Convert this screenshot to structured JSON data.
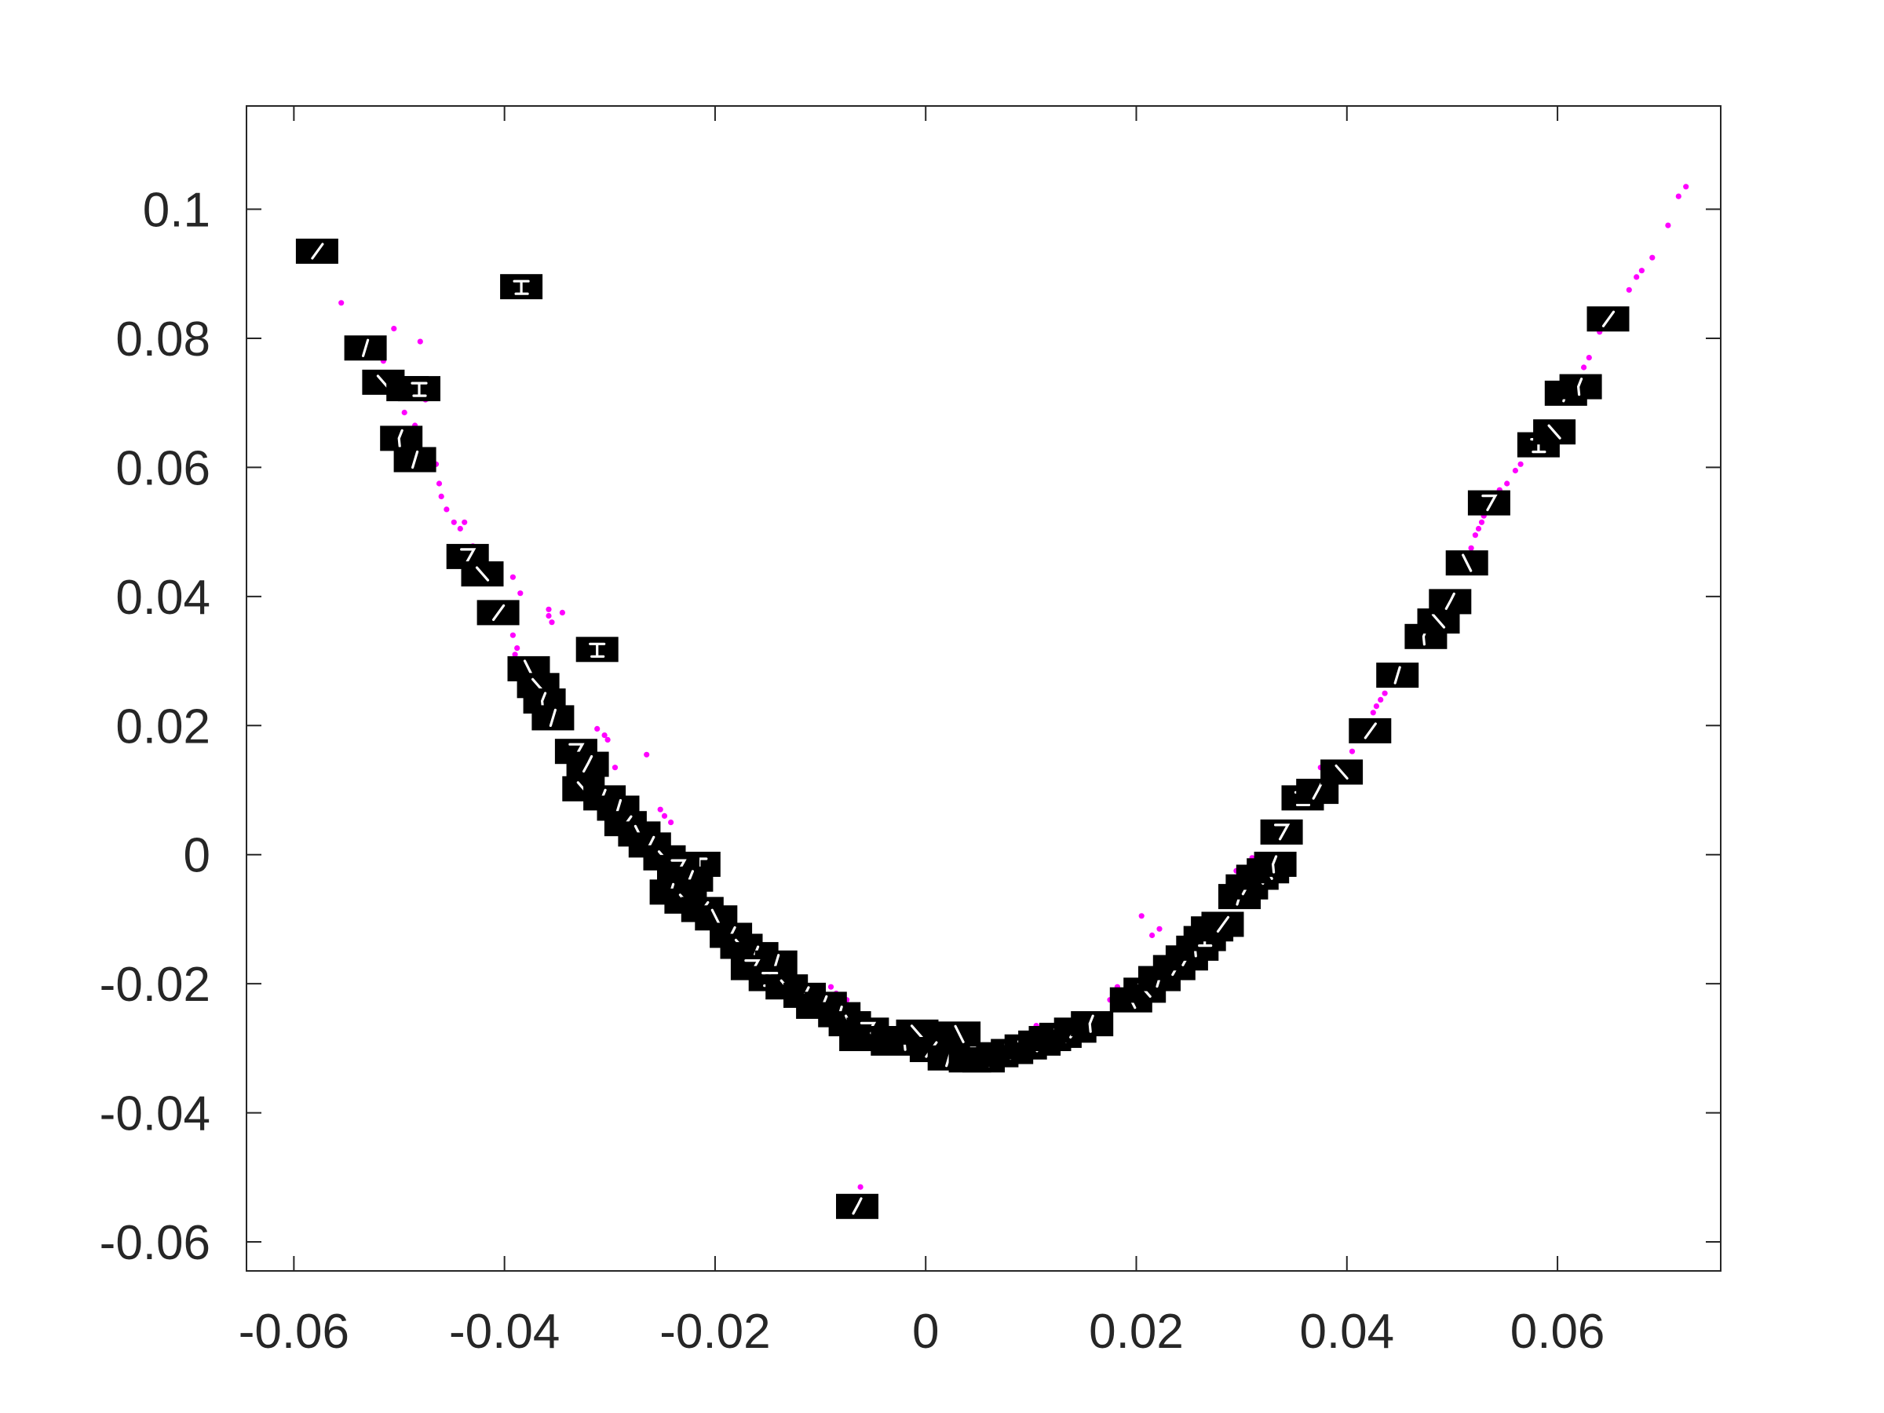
{
  "chart_data": {
    "type": "scatter",
    "title": "",
    "xlabel": "",
    "ylabel": "",
    "xlim": [
      -0.0645,
      0.0755
    ],
    "ylim": [
      -0.0645,
      0.116
    ],
    "grid": false,
    "box": true,
    "colors": {
      "dots": "#ff00ff",
      "thumbnail_bg": "#000000",
      "thumbnail_stroke": "#ffffff",
      "axes": "#262626"
    },
    "x_ticks": [
      {
        "value": -0.06,
        "label": "-0.06"
      },
      {
        "value": -0.04,
        "label": "-0.04"
      },
      {
        "value": -0.02,
        "label": "-0.02"
      },
      {
        "value": 0,
        "label": "0"
      },
      {
        "value": 0.02,
        "label": "0.02"
      },
      {
        "value": 0.04,
        "label": "0.04"
      },
      {
        "value": 0.06,
        "label": "0.06"
      }
    ],
    "y_ticks": [
      {
        "value": 0.1,
        "label": "0.1"
      },
      {
        "value": 0.08,
        "label": "0.08"
      },
      {
        "value": 0.06,
        "label": "0.06"
      },
      {
        "value": 0.04,
        "label": "0.04"
      },
      {
        "value": 0.02,
        "label": "0.02"
      },
      {
        "value": 0,
        "label": "0"
      },
      {
        "value": -0.02,
        "label": "-0.02"
      },
      {
        "value": -0.04,
        "label": "-0.04"
      },
      {
        "value": -0.06,
        "label": "-0.06"
      }
    ],
    "dots": [
      [
        -0.0555,
        0.0855
      ],
      [
        -0.0505,
        0.0815
      ],
      [
        -0.048,
        0.0795
      ],
      [
        -0.0515,
        0.0765
      ],
      [
        -0.0475,
        0.0705
      ],
      [
        -0.0495,
        0.0685
      ],
      [
        -0.0485,
        0.0665
      ],
      [
        -0.0465,
        0.0605
      ],
      [
        -0.0462,
        0.0575
      ],
      [
        -0.046,
        0.0555
      ],
      [
        -0.0455,
        0.0535
      ],
      [
        -0.0448,
        0.0515
      ],
      [
        -0.0442,
        0.0505
      ],
      [
        -0.0438,
        0.0515
      ],
      [
        -0.043,
        0.0478
      ],
      [
        -0.0392,
        0.043
      ],
      [
        -0.0385,
        0.0405
      ],
      [
        -0.0358,
        0.038
      ],
      [
        -0.0358,
        0.037
      ],
      [
        -0.0355,
        0.036
      ],
      [
        -0.0345,
        0.0375
      ],
      [
        -0.0392,
        0.034
      ],
      [
        -0.0388,
        0.032
      ],
      [
        -0.039,
        0.031
      ],
      [
        -0.0312,
        0.0195
      ],
      [
        -0.0305,
        0.0185
      ],
      [
        -0.0302,
        0.0178
      ],
      [
        -0.0295,
        0.0135
      ],
      [
        -0.0265,
        0.0155
      ],
      [
        -0.0252,
        0.007
      ],
      [
        -0.0248,
        0.006
      ],
      [
        -0.0242,
        0.005
      ],
      [
        -0.0205,
        -0.0005
      ],
      [
        -0.0198,
        -0.002
      ],
      [
        -0.0135,
        -0.0155
      ],
      [
        -0.0125,
        -0.0165
      ],
      [
        -0.009,
        -0.0205
      ],
      [
        -0.0085,
        -0.0215
      ],
      [
        -0.0075,
        -0.0225
      ],
      [
        0.0105,
        -0.0265
      ],
      [
        0.0115,
        -0.0275
      ],
      [
        0.0125,
        -0.0282
      ],
      [
        0.017,
        -0.0255
      ],
      [
        0.0175,
        -0.0225
      ],
      [
        0.0178,
        -0.0215
      ],
      [
        0.0182,
        -0.0205
      ],
      [
        0.0205,
        -0.0095
      ],
      [
        0.0215,
        -0.0125
      ],
      [
        0.0222,
        -0.0115
      ],
      [
        0.029,
        -0.0035
      ],
      [
        0.0295,
        -0.0025
      ],
      [
        0.0305,
        -0.002
      ],
      [
        0.031,
        -0.0005
      ],
      [
        0.0375,
        0.0135
      ],
      [
        0.0385,
        0.012
      ],
      [
        0.0405,
        0.016
      ],
      [
        0.0425,
        0.022
      ],
      [
        0.0428,
        0.023
      ],
      [
        0.0432,
        0.024
      ],
      [
        0.0436,
        0.025
      ],
      [
        0.0445,
        0.0265
      ],
      [
        0.0485,
        0.038
      ],
      [
        0.0488,
        0.039
      ],
      [
        0.0492,
        0.04
      ],
      [
        0.0505,
        0.044
      ],
      [
        0.0512,
        0.046
      ],
      [
        0.0518,
        0.0475
      ],
      [
        0.0522,
        0.0495
      ],
      [
        0.0525,
        0.0505
      ],
      [
        0.0528,
        0.0515
      ],
      [
        0.053,
        0.0525
      ],
      [
        0.0545,
        0.0565
      ],
      [
        0.0552,
        0.0575
      ],
      [
        0.056,
        0.0595
      ],
      [
        0.0565,
        0.0605
      ],
      [
        0.0572,
        0.062
      ],
      [
        0.0615,
        0.0725
      ],
      [
        0.062,
        0.074
      ],
      [
        0.0625,
        0.0755
      ],
      [
        0.063,
        0.077
      ],
      [
        0.064,
        0.081
      ],
      [
        0.066,
        0.0845
      ],
      [
        0.0668,
        0.0875
      ],
      [
        0.0675,
        0.0895
      ],
      [
        0.068,
        0.0905
      ],
      [
        0.069,
        0.0925
      ],
      [
        0.0705,
        0.0975
      ],
      [
        0.0715,
        0.102
      ],
      [
        0.0722,
        0.1035
      ],
      [
        -0.0062,
        -0.0515
      ],
      [
        0.0005,
        -0.029
      ],
      [
        0.0042,
        -0.0305
      ],
      [
        0.0092,
        -0.0292
      ]
    ],
    "thumbnails": [
      [
        -0.0578,
        0.0935,
        1
      ],
      [
        -0.0384,
        0.088,
        2
      ],
      [
        -0.0532,
        0.0785,
        3
      ],
      [
        -0.0515,
        0.0732,
        4
      ],
      [
        -0.0492,
        0.0722,
        5
      ],
      [
        -0.0481,
        0.0722,
        2
      ],
      [
        -0.0498,
        0.0645,
        6
      ],
      [
        -0.0485,
        0.0612,
        3
      ],
      [
        -0.0435,
        0.0462,
        7
      ],
      [
        -0.0421,
        0.0435,
        4
      ],
      [
        -0.0406,
        0.0375,
        1
      ],
      [
        -0.0377,
        0.0288,
        8
      ],
      [
        -0.0368,
        0.0262,
        4
      ],
      [
        -0.0362,
        0.0238,
        6
      ],
      [
        -0.0354,
        0.0212,
        3
      ],
      [
        -0.0312,
        0.0318,
        2
      ],
      [
        -0.0332,
        0.016,
        7
      ],
      [
        -0.0321,
        0.014,
        5
      ],
      [
        -0.0325,
        0.0102,
        4
      ],
      [
        -0.0305,
        0.0088,
        6
      ],
      [
        -0.0292,
        0.0072,
        3
      ],
      [
        -0.0285,
        0.0048,
        1
      ],
      [
        -0.0272,
        0.0032,
        8
      ],
      [
        -0.0262,
        0.0015,
        5
      ],
      [
        -0.0248,
        -0.0005,
        4
      ],
      [
        -0.0215,
        -0.0015,
        2
      ],
      [
        -0.0235,
        -0.002,
        7
      ],
      [
        -0.0222,
        -0.0038,
        6
      ],
      [
        -0.0242,
        -0.0058,
        3
      ],
      [
        -0.0228,
        -0.0072,
        4
      ],
      [
        -0.0212,
        -0.0085,
        1
      ],
      [
        -0.0199,
        -0.0098,
        8
      ],
      [
        -0.0185,
        -0.0125,
        5
      ],
      [
        -0.0175,
        -0.0142,
        4
      ],
      [
        -0.016,
        -0.0155,
        6
      ],
      [
        -0.0142,
        -0.0168,
        3
      ],
      [
        -0.0165,
        -0.0175,
        7
      ],
      [
        -0.0148,
        -0.0192,
        2
      ],
      [
        -0.0132,
        -0.0205,
        4
      ],
      [
        -0.0115,
        -0.0218,
        5
      ],
      [
        -0.0103,
        -0.0235,
        1
      ],
      [
        -0.0095,
        -0.0232,
        6
      ],
      [
        -0.0082,
        -0.0248,
        3
      ],
      [
        -0.0072,
        -0.0262,
        8
      ],
      [
        -0.0062,
        -0.0285,
        4
      ],
      [
        -0.0055,
        -0.0272,
        7
      ],
      [
        -0.0045,
        -0.0285,
        2
      ],
      [
        -0.0032,
        -0.0292,
        5
      ],
      [
        -0.0018,
        -0.029,
        6
      ],
      [
        -0.0008,
        -0.0275,
        4
      ],
      [
        0.0005,
        -0.0302,
        1
      ],
      [
        0.0022,
        -0.0315,
        3
      ],
      [
        0.0032,
        -0.0278,
        8
      ],
      [
        0.0042,
        -0.0318,
        5
      ],
      [
        0.0055,
        -0.0318,
        4
      ],
      [
        0.0068,
        -0.031,
        6
      ],
      [
        0.0082,
        -0.0305,
        7
      ],
      [
        0.0095,
        -0.0298,
        2
      ],
      [
        0.0108,
        -0.0292,
        3
      ],
      [
        0.0118,
        -0.0285,
        5
      ],
      [
        0.0128,
        -0.028,
        4
      ],
      [
        0.0142,
        -0.0272,
        1
      ],
      [
        0.0158,
        -0.0262,
        6
      ],
      [
        0.0195,
        -0.0225,
        8
      ],
      [
        0.0208,
        -0.021,
        4
      ],
      [
        0.0222,
        -0.0192,
        3
      ],
      [
        0.0236,
        -0.0175,
        7
      ],
      [
        0.0248,
        -0.016,
        5
      ],
      [
        0.0258,
        -0.0145,
        6
      ],
      [
        0.0265,
        -0.013,
        2
      ],
      [
        0.0272,
        -0.0115,
        4
      ],
      [
        0.0282,
        -0.0108,
        1
      ],
      [
        0.0298,
        -0.0065,
        3
      ],
      [
        0.0305,
        -0.005,
        5
      ],
      [
        0.0315,
        -0.0035,
        4
      ],
      [
        0.0325,
        -0.0025,
        8
      ],
      [
        0.0332,
        -0.0015,
        6
      ],
      [
        0.0338,
        0.0035,
        7
      ],
      [
        0.0358,
        0.0088,
        2
      ],
      [
        0.0372,
        0.0098,
        5
      ],
      [
        0.0395,
        0.0128,
        4
      ],
      [
        0.0422,
        0.0192,
        1
      ],
      [
        0.0448,
        0.0278,
        3
      ],
      [
        0.0475,
        0.0338,
        6
      ],
      [
        0.0487,
        0.0362,
        4
      ],
      [
        0.0498,
        0.0392,
        5
      ],
      [
        0.0514,
        0.0452,
        8
      ],
      [
        0.0535,
        0.0545,
        7
      ],
      [
        0.0582,
        0.0635,
        2
      ],
      [
        0.0597,
        0.0655,
        4
      ],
      [
        0.0608,
        0.0715,
        3
      ],
      [
        0.0622,
        0.0725,
        6
      ],
      [
        0.0648,
        0.083,
        1
      ],
      [
        -0.0065,
        -0.0545,
        5
      ]
    ]
  }
}
